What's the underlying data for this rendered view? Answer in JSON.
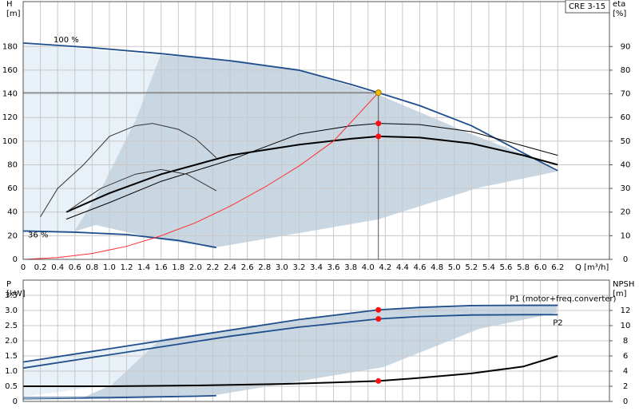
{
  "chart_data": [
    {
      "type": "line",
      "title": "CRE 3-15",
      "y_label": [
        "H",
        "[m]"
      ],
      "y2_label": [
        "eta",
        "[%]"
      ],
      "x_label": "Q [m³/h]",
      "xlim": [
        0,
        6.8
      ],
      "ylim": [
        0,
        218
      ],
      "y2lim": [
        0,
        109
      ],
      "grid": true,
      "xticks": [
        0,
        0.2,
        0.4,
        0.6,
        0.8,
        {
          "value": 1,
          "label": "1.0"
        },
        1.2,
        1.4,
        1.6,
        1.8,
        {
          "value": 2,
          "label": "2.0"
        },
        2.2,
        2.4,
        2.6,
        2.8,
        {
          "value": 3,
          "label": "3.0"
        },
        3.2,
        3.4,
        3.6,
        3.8,
        {
          "value": 4,
          "label": "4.0"
        },
        4.2,
        4.4,
        4.6,
        4.8,
        {
          "value": 5,
          "label": "5.0"
        },
        5.2,
        5.4,
        5.6,
        5.8,
        {
          "value": 6,
          "label": "6.0"
        },
        6.2
      ],
      "yticks": [
        0,
        20,
        40,
        60,
        80,
        100,
        120,
        140,
        160,
        180
      ],
      "y2ticks": [
        0,
        10,
        20,
        30,
        40,
        50,
        60,
        70,
        80,
        90
      ],
      "operating_point": {
        "x": 4.12,
        "y": 141
      },
      "series": [
        {
          "name": "100 %",
          "color": "#1f4e8c",
          "x": [
            0,
            0.8,
            1.6,
            2.4,
            3.2,
            3.8,
            4.12,
            4.6,
            5.2,
            5.8,
            6.2
          ],
          "values": [
            183,
            179,
            174,
            168,
            160,
            148,
            141,
            130,
            113,
            90,
            75
          ]
        },
        {
          "name": "36 %",
          "color": "#1f4e8c",
          "x": [
            0,
            0.6,
            1.2,
            1.8,
            2.24
          ],
          "values": [
            24,
            23,
            21,
            16,
            10
          ]
        },
        {
          "color": "#000000",
          "axis": "y2",
          "x": [
            0.5,
            1,
            1.6,
            2.4,
            3.2,
            3.8,
            4.12,
            4.6,
            5.2,
            5.8,
            6.2
          ],
          "values": [
            20,
            28,
            36,
            44,
            48.5,
            51,
            52,
            51.5,
            49,
            44,
            40
          ]
        },
        {
          "color": "#000000",
          "axis": "y2",
          "x": [
            0.5,
            1,
            1.6,
            2.4,
            3.2,
            3.8,
            4.12,
            4.6,
            5.2,
            5.8,
            6.2
          ],
          "values": [
            17,
            24,
            33,
            42,
            53,
            56.5,
            57.5,
            57,
            54,
            48,
            44
          ]
        },
        {
          "color": "#333333",
          "axis": "y2",
          "x": [
            0.2,
            0.4,
            0.7,
            1,
            1.3,
            1.5,
            1.8,
            2,
            2.24
          ],
          "values": [
            18,
            30,
            40,
            52,
            56.5,
            57.5,
            55,
            51,
            43
          ]
        },
        {
          "color": "#333333",
          "axis": "y2",
          "x": [
            0.5,
            0.9,
            1.3,
            1.6,
            1.9,
            2.24
          ],
          "values": [
            20,
            30,
            36,
            38,
            36,
            29
          ]
        },
        {
          "color": "#ff3030",
          "x": [
            0,
            0.4,
            0.8,
            1.2,
            1.6,
            2,
            2.4,
            2.8,
            3.2,
            3.6,
            4.12
          ],
          "values": [
            0,
            1.5,
            5,
            11,
            20,
            31,
            45,
            61,
            79,
            100,
            141
          ]
        }
      ]
    },
    {
      "type": "line",
      "y_label": [
        "P",
        "[kW]"
      ],
      "y2_label": [
        "NPSH",
        "[m]"
      ],
      "xlim": [
        0,
        6.8
      ],
      "ylim": [
        0,
        4
      ],
      "y2lim": [
        0,
        16
      ],
      "grid": true,
      "xticks": [
        0,
        0.2,
        0.4,
        0.6,
        0.8,
        1,
        1.2,
        1.4,
        1.6,
        1.8,
        2,
        2.2,
        2.4,
        2.6,
        2.8,
        3,
        3.2,
        3.4,
        3.6,
        3.8,
        4,
        4.2,
        4.4,
        4.6,
        4.8,
        5,
        5.2,
        5.4,
        5.6,
        5.8,
        6,
        6.2
      ],
      "yticks": [
        0,
        0.5,
        {
          "value": 1,
          "label": "1.0"
        },
        1.5,
        {
          "value": 2,
          "label": "2.0"
        },
        2.5,
        {
          "value": 3,
          "label": "3.0"
        },
        3.5
      ],
      "y2ticks": [
        0,
        2,
        4,
        6,
        8,
        10,
        12
      ],
      "operating_point": {
        "x": 4.12
      },
      "series": [
        {
          "name": "P1 (motor+freq.converter)",
          "color": "#1f4e8c",
          "x": [
            0,
            0.8,
            1.6,
            2.4,
            3.2,
            4.12,
            4.6,
            5.2,
            5.8,
            6.2
          ],
          "values": [
            1.3,
            1.65,
            2.0,
            2.35,
            2.7,
            3.02,
            3.1,
            3.16,
            3.17,
            3.17
          ]
        },
        {
          "name": "P2",
          "color": "#1f4e8c",
          "x": [
            0,
            0.8,
            1.6,
            2.4,
            3.2,
            4.12,
            4.6,
            5.2,
            5.8,
            6.2
          ],
          "values": [
            1.1,
            1.45,
            1.8,
            2.15,
            2.45,
            2.72,
            2.8,
            2.85,
            2.86,
            2.86
          ]
        },
        {
          "color": "#000000",
          "axis": "y2",
          "x": [
            0,
            1,
            2,
            3,
            3.6,
            4.12,
            4.6,
            5.2,
            5.8,
            6.2
          ],
          "values": [
            2,
            2,
            2.1,
            2.3,
            2.5,
            2.7,
            3.1,
            3.7,
            4.6,
            6
          ]
        },
        {
          "color": "#1f4e8c",
          "x": [
            0,
            1,
            2,
            2.24
          ],
          "values": [
            0.08,
            0.11,
            0.16,
            0.18
          ]
        },
        {
          "color": "#1f4e8c",
          "x": [
            0,
            1,
            2,
            2.24
          ],
          "values": [
            0.13,
            0.14,
            0.18,
            0.2
          ]
        }
      ]
    }
  ]
}
